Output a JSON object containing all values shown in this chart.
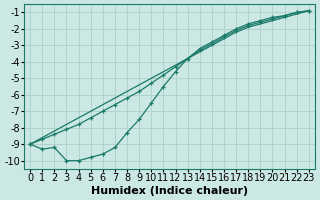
{
  "xlabel": "Humidex (Indice chaleur)",
  "ylabel": "",
  "bg_color": "#cce8e4",
  "grid_color": "#b0d4cc",
  "line_color": "#1a7a6a",
  "x": [
    0,
    1,
    2,
    3,
    4,
    5,
    6,
    7,
    8,
    9,
    10,
    11,
    12,
    13,
    14,
    15,
    16,
    17,
    18,
    19,
    20,
    21,
    22,
    23
  ],
  "line1": [
    -9.0,
    -8.6,
    -8.2,
    -7.8,
    -7.4,
    -7.0,
    -6.6,
    -6.2,
    -5.8,
    -5.4,
    -5.0,
    -4.6,
    -4.2,
    -3.8,
    -3.4,
    -3.0,
    -2.6,
    -2.2,
    -1.9,
    -1.7,
    -1.5,
    -1.3,
    -1.1,
    -0.9
  ],
  "line2": [
    -9.0,
    -8.7,
    -8.4,
    -8.1,
    -7.8,
    -7.4,
    -7.0,
    -6.6,
    -6.2,
    -5.8,
    -5.3,
    -4.8,
    -4.3,
    -3.8,
    -3.3,
    -2.9,
    -2.5,
    -2.1,
    -1.8,
    -1.6,
    -1.4,
    -1.2,
    -1.0,
    -0.9
  ],
  "line3": [
    -9.0,
    -9.3,
    -9.2,
    -10.0,
    -10.0,
    -9.8,
    -9.6,
    -9.2,
    -8.3,
    -7.5,
    -6.5,
    -5.5,
    -4.6,
    -3.8,
    -3.2,
    -2.8,
    -2.4,
    -2.0,
    -1.7,
    -1.5,
    -1.3,
    -1.2,
    -1.0,
    -0.9
  ],
  "xlim": [
    -0.5,
    23.5
  ],
  "ylim": [
    -10.5,
    -0.5
  ],
  "yticks": [
    -10,
    -9,
    -8,
    -7,
    -6,
    -5,
    -4,
    -3,
    -2,
    -1
  ],
  "xticks": [
    0,
    1,
    2,
    3,
    4,
    5,
    6,
    7,
    8,
    9,
    10,
    11,
    12,
    13,
    14,
    15,
    16,
    17,
    18,
    19,
    20,
    21,
    22,
    23
  ],
  "tick_fontsize": 7,
  "xlabel_fontsize": 8
}
